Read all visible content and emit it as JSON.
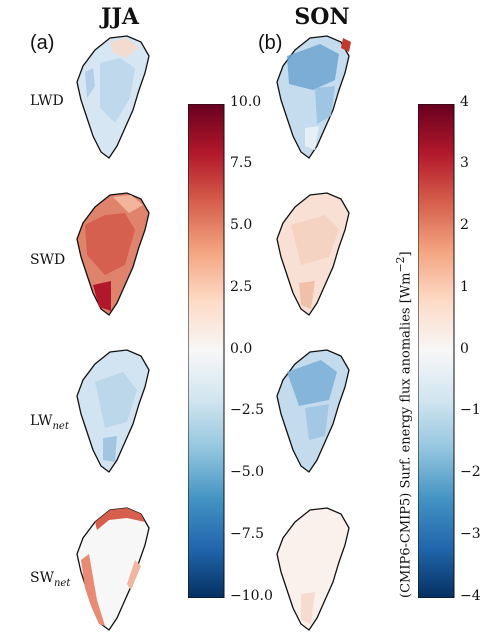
{
  "columns": [
    {
      "title": "JJA",
      "panel": "(a)"
    },
    {
      "title": "SON",
      "panel": "(b)"
    }
  ],
  "rows": [
    {
      "main": "LWD",
      "sub": ""
    },
    {
      "main": "SWD",
      "sub": ""
    },
    {
      "main": "LW",
      "sub": "net"
    },
    {
      "main": "SW",
      "sub": "net"
    }
  ],
  "colorbars": [
    {
      "ticks": [
        "10.0",
        "7.5",
        "5.0",
        "2.5",
        "0.0",
        "−2.5",
        "−5.0",
        "−7.5",
        "−10.0"
      ],
      "range": [
        -10,
        10
      ]
    },
    {
      "ticks": [
        "4",
        "3",
        "2",
        "1",
        "0",
        "−1",
        "−2",
        "−3",
        "−4"
      ],
      "range": [
        -4,
        4
      ]
    }
  ],
  "colorbar_label": "(CMIP6-CMIP5) Surf. energy flux anomalies [Wm",
  "colorbar_label_exp": "−2",
  "colorbar_label_end": "]",
  "colormap": [
    "#67001f",
    "#b2182b",
    "#d6604d",
    "#f4a582",
    "#fddbc7",
    "#f7f7f7",
    "#d1e5f0",
    "#92c5de",
    "#4393c3",
    "#2166ac",
    "#053061"
  ]
}
